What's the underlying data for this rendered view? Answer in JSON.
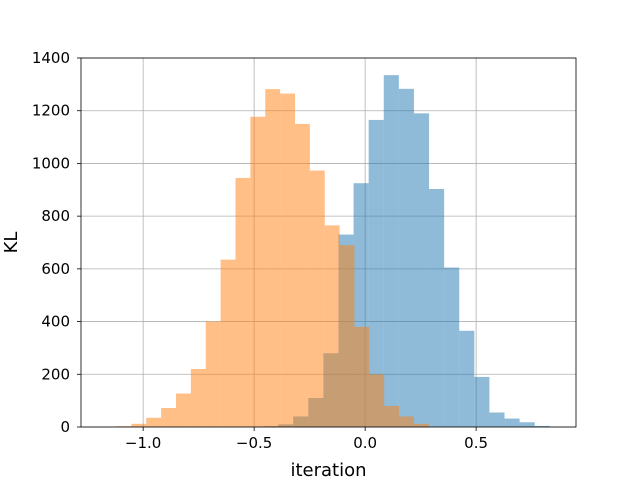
{
  "chart_data": {
    "type": "bar",
    "subtype": "overlaid-histogram",
    "title": "",
    "xlabel": "iteration",
    "ylabel": "KL",
    "xlim": [
      -1.28,
      0.95
    ],
    "ylim": [
      0,
      1400
    ],
    "xticks": [
      -1.0,
      -0.5,
      0.0,
      0.5
    ],
    "xtick_labels": [
      "−1.0",
      "−0.5",
      "0.0",
      "0.5"
    ],
    "yticks": [
      0,
      200,
      400,
      600,
      800,
      1000,
      1200,
      1400
    ],
    "ytick_labels": [
      "0",
      "200",
      "400",
      "600",
      "800",
      "1000",
      "1200",
      "1400"
    ],
    "grid": true,
    "legend": "none",
    "series": [
      {
        "color": "#1f77b4",
        "opacity": 0.5,
        "bin_edges": [
          -0.46,
          -0.392,
          -0.324,
          -0.256,
          -0.188,
          -0.12,
          -0.052,
          0.016,
          0.084,
          0.152,
          0.22,
          0.288,
          0.356,
          0.424,
          0.492,
          0.56,
          0.628,
          0.696,
          0.764,
          0.832
        ],
        "counts": [
          3,
          10,
          40,
          110,
          280,
          730,
          925,
          1165,
          1335,
          1283,
          1190,
          903,
          605,
          365,
          190,
          55,
          32,
          18,
          4
        ]
      },
      {
        "color": "#ff7f0e",
        "opacity": 0.5,
        "bin_edges": [
          -1.12,
          -1.053,
          -0.986,
          -0.919,
          -0.852,
          -0.785,
          -0.718,
          -0.651,
          -0.584,
          -0.517,
          -0.45,
          -0.383,
          -0.316,
          -0.249,
          -0.182,
          -0.115,
          -0.048,
          0.019,
          0.086,
          0.153,
          0.22,
          0.287
        ],
        "counts": [
          3,
          12,
          35,
          72,
          127,
          220,
          400,
          635,
          945,
          1177,
          1282,
          1265,
          1150,
          973,
          765,
          690,
          380,
          200,
          80,
          40,
          12
        ]
      }
    ]
  }
}
